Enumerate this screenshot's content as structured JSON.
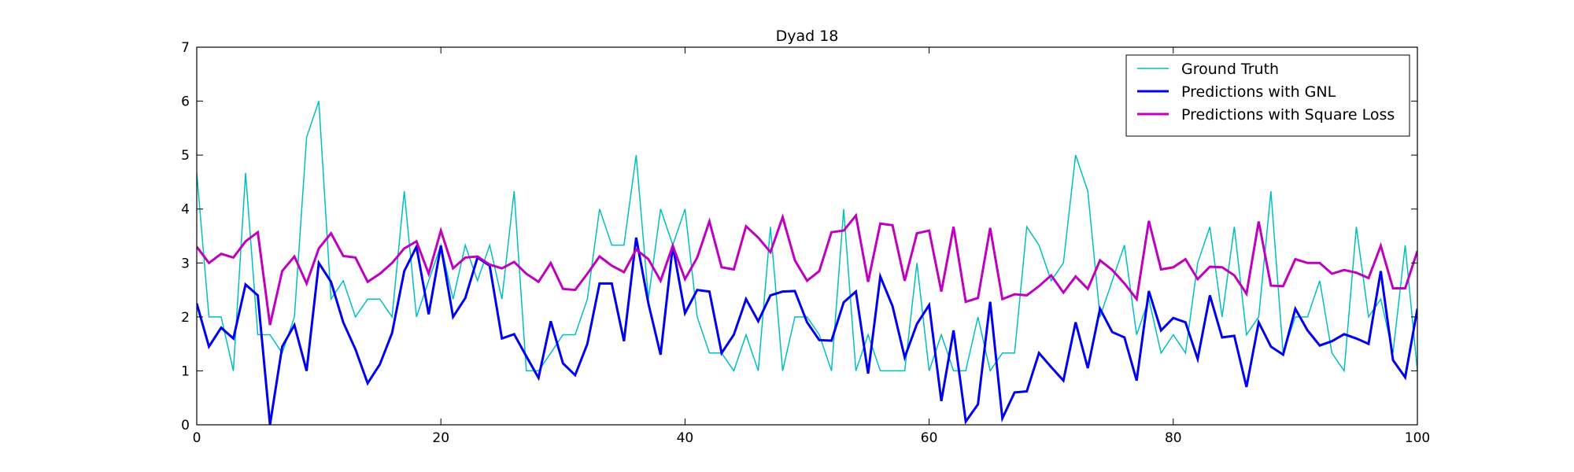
{
  "chart_data": {
    "type": "line",
    "title": "Dyad 18",
    "xlabel": "",
    "ylabel": "",
    "xlim": [
      0,
      100
    ],
    "ylim": [
      0,
      7
    ],
    "x_ticks": [
      0,
      20,
      40,
      60,
      80,
      100
    ],
    "y_ticks": [
      0,
      1,
      2,
      3,
      4,
      5,
      6,
      7
    ],
    "grid": false,
    "legend_position": "top-right",
    "series": [
      {
        "name": "Ground Truth",
        "color": "#00bfbf",
        "width": 1.5,
        "values": [
          4.67,
          2.0,
          2.0,
          1.0,
          4.67,
          1.67,
          1.67,
          1.33,
          2.0,
          5.33,
          6.0,
          2.33,
          2.67,
          2.0,
          2.33,
          2.33,
          2.0,
          4.33,
          2.0,
          2.67,
          3.33,
          2.33,
          3.33,
          2.67,
          3.33,
          2.33,
          4.33,
          1.0,
          1.0,
          1.33,
          1.67,
          1.67,
          2.33,
          4.0,
          3.33,
          3.33,
          5.0,
          2.33,
          4.0,
          3.33,
          4.0,
          2.0,
          1.33,
          1.33,
          1.0,
          1.67,
          1.0,
          3.67,
          1.0,
          2.0,
          2.0,
          1.67,
          1.0,
          4.0,
          1.0,
          1.67,
          1.0,
          1.0,
          1.0,
          3.0,
          1.0,
          1.67,
          1.0,
          1.0,
          2.0,
          1.0,
          1.33,
          1.33,
          3.67,
          3.33,
          2.67,
          3.0,
          5.0,
          4.33,
          2.0,
          2.67,
          3.33,
          1.67,
          2.33,
          1.33,
          1.67,
          1.33,
          3.0,
          3.67,
          2.0,
          3.67,
          1.67,
          2.0,
          4.33,
          1.33,
          2.0,
          2.0,
          2.67,
          1.33,
          1.0,
          3.67,
          2.0,
          2.33,
          1.33,
          3.33,
          1.0
        ]
      },
      {
        "name": "Predictions with GNL",
        "color": "#0000ee",
        "width": 3,
        "values": [
          2.25,
          1.45,
          1.8,
          1.6,
          2.6,
          2.4,
          0.0,
          1.45,
          1.85,
          1.0,
          3.0,
          2.65,
          1.9,
          1.4,
          0.77,
          1.12,
          1.7,
          2.85,
          3.3,
          2.05,
          3.32,
          2.0,
          2.35,
          3.1,
          2.95,
          1.6,
          1.68,
          1.27,
          0.87,
          1.92,
          1.14,
          0.92,
          1.5,
          2.62,
          2.62,
          1.55,
          3.47,
          2.25,
          1.3,
          3.32,
          2.07,
          2.5,
          2.47,
          1.33,
          1.67,
          2.33,
          1.92,
          2.4,
          2.47,
          2.48,
          1.9,
          1.57,
          1.56,
          2.27,
          2.47,
          0.95,
          2.75,
          2.2,
          1.25,
          1.87,
          2.22,
          0.44,
          1.75,
          0.06,
          0.38,
          2.28,
          0.12,
          0.6,
          0.62,
          1.33,
          1.07,
          0.82,
          1.9,
          1.05,
          2.15,
          1.72,
          1.62,
          0.82,
          2.48,
          1.75,
          1.98,
          1.9,
          1.22,
          2.4,
          1.62,
          1.65,
          0.7,
          1.9,
          1.45,
          1.3,
          2.15,
          1.75,
          1.47,
          1.55,
          1.68,
          1.6,
          1.5,
          2.85,
          1.2,
          0.88,
          2.15
        ]
      },
      {
        "name": "Predictions with Square Loss",
        "color": "#bf00bf",
        "width": 3,
        "values": [
          3.3,
          3.0,
          3.17,
          3.1,
          3.4,
          3.57,
          1.85,
          2.85,
          3.12,
          2.62,
          3.27,
          3.55,
          3.13,
          3.1,
          2.65,
          2.8,
          3.0,
          3.27,
          3.4,
          2.8,
          3.6,
          2.9,
          3.1,
          3.12,
          2.97,
          2.9,
          3.02,
          2.8,
          2.65,
          3.0,
          2.52,
          2.5,
          2.8,
          3.12,
          2.95,
          2.83,
          3.25,
          3.07,
          2.67,
          3.32,
          2.7,
          3.1,
          3.77,
          2.92,
          2.88,
          3.68,
          3.47,
          3.2,
          3.85,
          3.05,
          2.67,
          2.85,
          3.57,
          3.6,
          3.88,
          2.65,
          3.73,
          3.7,
          2.67,
          3.55,
          3.6,
          2.47,
          3.67,
          2.28,
          2.35,
          3.65,
          2.33,
          2.42,
          2.4,
          2.57,
          2.77,
          2.45,
          2.75,
          2.52,
          3.05,
          2.87,
          2.62,
          2.33,
          3.78,
          2.88,
          2.92,
          3.07,
          2.7,
          2.93,
          2.92,
          2.77,
          2.43,
          3.77,
          2.58,
          2.57,
          3.07,
          3.0,
          3.0,
          2.8,
          2.87,
          2.82,
          2.72,
          3.32,
          2.53,
          2.53,
          3.22
        ]
      }
    ]
  }
}
